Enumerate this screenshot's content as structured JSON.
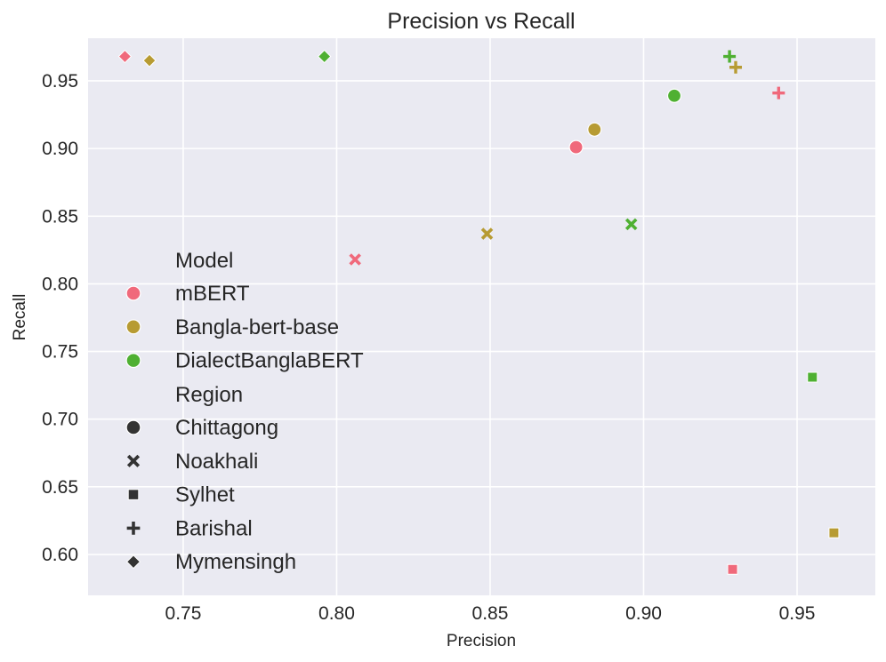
{
  "chart_data": {
    "type": "scatter",
    "title": "Precision vs Recall",
    "xlabel": "Precision",
    "ylabel": "Recall",
    "xlim": [
      0.719,
      0.9755
    ],
    "ylim": [
      0.5698,
      0.9815
    ],
    "xticks": [
      0.75,
      0.8,
      0.85,
      0.9,
      0.95
    ],
    "xtick_labels": [
      "0.75",
      "0.80",
      "0.85",
      "0.90",
      "0.95"
    ],
    "yticks": [
      0.6,
      0.65,
      0.7,
      0.75,
      0.8,
      0.85,
      0.9,
      0.95
    ],
    "ytick_labels": [
      "0.60",
      "0.65",
      "0.70",
      "0.75",
      "0.80",
      "0.85",
      "0.90",
      "0.95"
    ],
    "grid": true,
    "legend": {
      "placement": "center-left",
      "model_title": "Model",
      "region_title": "Region",
      "models": [
        {
          "name": "mBERT",
          "color": "#f0697b"
        },
        {
          "name": "Bangla-bert-base",
          "color": "#b79b33"
        },
        {
          "name": "DialectBanglaBERT",
          "color": "#4fb032"
        }
      ],
      "regions": [
        {
          "name": "Chittagong",
          "marker": "circle"
        },
        {
          "name": "Noakhali",
          "marker": "x"
        },
        {
          "name": "Sylhet",
          "marker": "square"
        },
        {
          "name": "Barishal",
          "marker": "plus"
        },
        {
          "name": "Mymensingh",
          "marker": "diamond"
        }
      ],
      "neutral_marker_color": "#333333"
    },
    "series": [
      {
        "name": "mBERT",
        "points": [
          {
            "region": "Chittagong",
            "x": 0.878,
            "y": 0.901
          },
          {
            "region": "Noakhali",
            "x": 0.806,
            "y": 0.818
          },
          {
            "region": "Sylhet",
            "x": 0.929,
            "y": 0.589
          },
          {
            "region": "Barishal",
            "x": 0.944,
            "y": 0.941
          },
          {
            "region": "Mymensingh",
            "x": 0.731,
            "y": 0.968
          }
        ]
      },
      {
        "name": "Bangla-bert-base",
        "points": [
          {
            "region": "Chittagong",
            "x": 0.884,
            "y": 0.914
          },
          {
            "region": "Noakhali",
            "x": 0.849,
            "y": 0.837
          },
          {
            "region": "Sylhet",
            "x": 0.962,
            "y": 0.616
          },
          {
            "region": "Barishal",
            "x": 0.93,
            "y": 0.96
          },
          {
            "region": "Mymensingh",
            "x": 0.739,
            "y": 0.965
          }
        ]
      },
      {
        "name": "DialectBanglaBERT",
        "points": [
          {
            "region": "Chittagong",
            "x": 0.91,
            "y": 0.939
          },
          {
            "region": "Noakhali",
            "x": 0.896,
            "y": 0.844
          },
          {
            "region": "Sylhet",
            "x": 0.955,
            "y": 0.731
          },
          {
            "region": "Barishal",
            "x": 0.928,
            "y": 0.968
          },
          {
            "region": "Mymensingh",
            "x": 0.796,
            "y": 0.968
          }
        ]
      }
    ]
  }
}
